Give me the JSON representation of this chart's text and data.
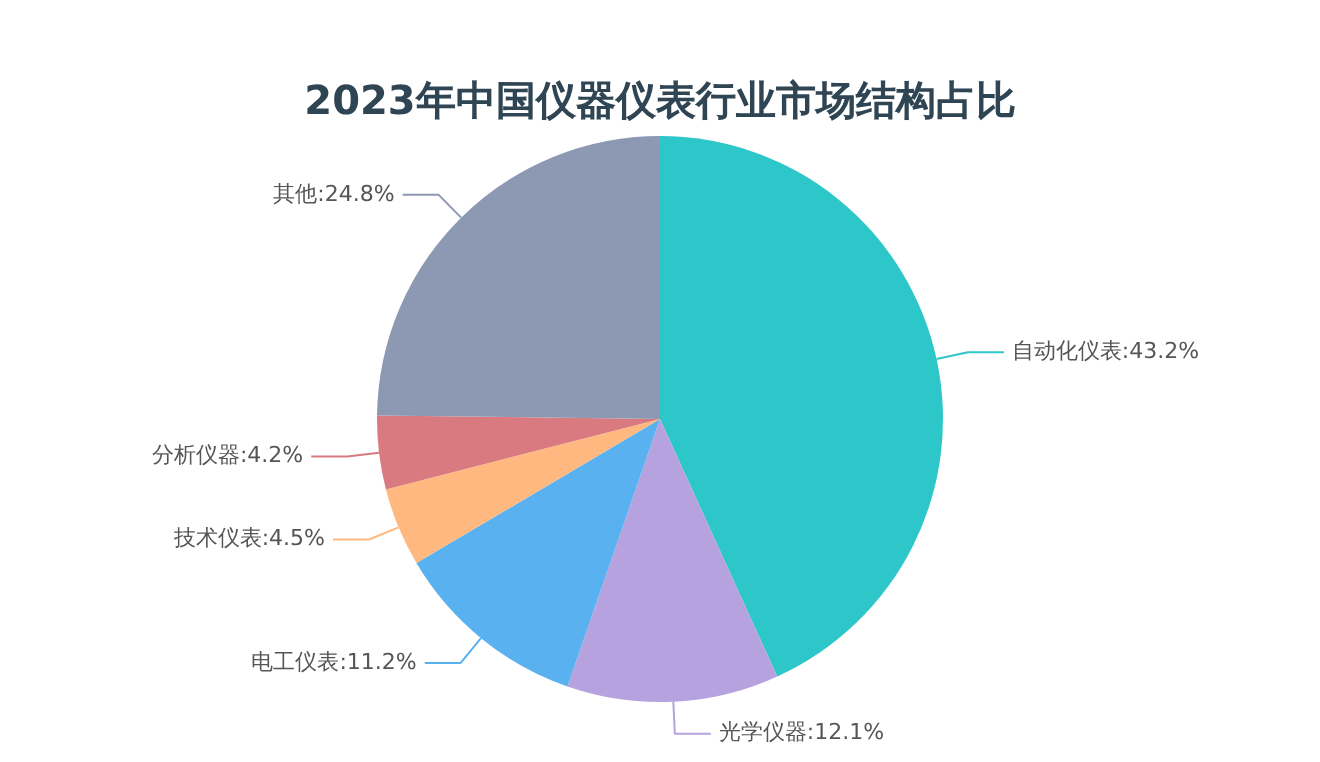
{
  "chart_data": {
    "type": "pie",
    "title": "2023年中国仪器仪表行业市场结构占比",
    "categories": [
      "自动化仪表",
      "光学仪器",
      "电工仪表",
      "技术仪表",
      "分析仪器",
      "其他"
    ],
    "values": [
      43.2,
      12.1,
      11.2,
      4.5,
      4.2,
      24.8
    ],
    "value_labels": [
      ":43.2%",
      ":12.1%",
      ":11.2%",
      ":4.5%",
      ":4.2%",
      ":24.8%"
    ],
    "colors": [
      "#2ec7c9",
      "#b6a2de",
      "#5ab1ef",
      "#ffb980",
      "#d87a80",
      "#8d98b3"
    ],
    "legend": false
  }
}
